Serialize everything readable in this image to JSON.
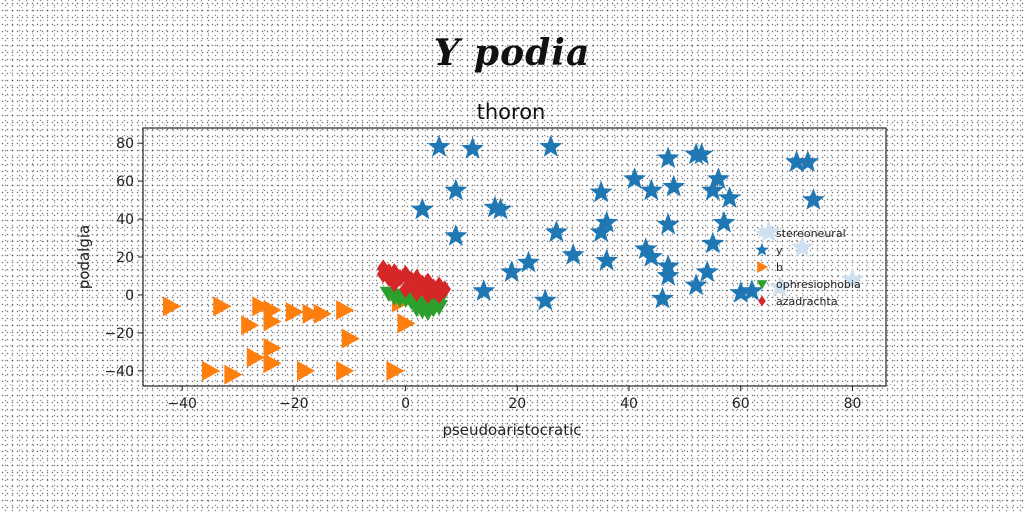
{
  "figure": {
    "suptitle": "Y podia"
  },
  "chart_data": {
    "type": "scatter",
    "title": "thoron",
    "xlabel": "pseudoaristocratic",
    "ylabel": "podalgia",
    "xlim": [
      -47,
      86
    ],
    "ylim": [
      -48,
      88
    ],
    "xticks": [
      -40,
      -20,
      0,
      20,
      40,
      60,
      80
    ],
    "yticks": [
      -40,
      -20,
      0,
      20,
      40,
      60,
      80
    ],
    "grid": false,
    "legend_position": "right",
    "series": [
      {
        "name": "stereoneural",
        "marker": "star",
        "color": "#cfe0f0",
        "points": [
          [
            65,
            33
          ],
          [
            71,
            25
          ],
          [
            67,
            4
          ],
          [
            80,
            8
          ]
        ]
      },
      {
        "name": "y",
        "marker": "star",
        "color": "#1f77b4",
        "points": [
          [
            6,
            78
          ],
          [
            12,
            77
          ],
          [
            26,
            78
          ],
          [
            52,
            74
          ],
          [
            53,
            74
          ],
          [
            47,
            72
          ],
          [
            41,
            61
          ],
          [
            44,
            55
          ],
          [
            48,
            57
          ],
          [
            55,
            55
          ],
          [
            56,
            61
          ],
          [
            58,
            51
          ],
          [
            70,
            70
          ],
          [
            72,
            70
          ],
          [
            73,
            50
          ],
          [
            3,
            45
          ],
          [
            9,
            55
          ],
          [
            16,
            46
          ],
          [
            17,
            45
          ],
          [
            35,
            54
          ],
          [
            36,
            38
          ],
          [
            35,
            33
          ],
          [
            47,
            37
          ],
          [
            57,
            38
          ],
          [
            9,
            31
          ],
          [
            27,
            33
          ],
          [
            43,
            24
          ],
          [
            44,
            20
          ],
          [
            55,
            27
          ],
          [
            22,
            17
          ],
          [
            30,
            21
          ],
          [
            36,
            18
          ],
          [
            47,
            15
          ],
          [
            47,
            10
          ],
          [
            19,
            12
          ],
          [
            54,
            12
          ],
          [
            14,
            2
          ],
          [
            25,
            -3
          ],
          [
            46,
            -2
          ],
          [
            52,
            5
          ],
          [
            60,
            1
          ],
          [
            62,
            2
          ]
        ]
      },
      {
        "name": "b",
        "marker": "triangle-right",
        "color": "#ff7f0e",
        "points": [
          [
            -42,
            -6
          ],
          [
            -33,
            -6
          ],
          [
            -26,
            -6
          ],
          [
            -24,
            -8
          ],
          [
            -20,
            -9
          ],
          [
            -15,
            -10
          ],
          [
            -11,
            -8
          ],
          [
            -28,
            -16
          ],
          [
            -24,
            -14
          ],
          [
            -17,
            -10
          ],
          [
            -10,
            -23
          ],
          [
            0,
            -15
          ],
          [
            -24,
            -28
          ],
          [
            -27,
            -33
          ],
          [
            -24,
            -36
          ],
          [
            -18,
            -40
          ],
          [
            -11,
            -40
          ],
          [
            -35,
            -40
          ],
          [
            -31,
            -42
          ],
          [
            -2,
            -40
          ],
          [
            -1,
            -4
          ]
        ]
      },
      {
        "name": "ophresiophobia",
        "marker": "triangle-down",
        "color": "#2ca02c",
        "points": [
          [
            -3,
            1
          ],
          [
            -1,
            0
          ],
          [
            1,
            -1
          ],
          [
            2,
            -3
          ],
          [
            3,
            -5
          ],
          [
            4,
            -4
          ],
          [
            5,
            -7
          ],
          [
            6,
            -6
          ],
          [
            -2,
            -1
          ],
          [
            0,
            -2
          ],
          [
            2,
            -5
          ],
          [
            3,
            -8
          ],
          [
            4,
            -9
          ],
          [
            6,
            -3
          ],
          [
            1,
            -3
          ],
          [
            -1,
            -2
          ],
          [
            3,
            -2
          ],
          [
            5,
            -2
          ],
          [
            4,
            -6
          ],
          [
            2,
            -7
          ]
        ]
      },
      {
        "name": "azadrachta",
        "marker": "diamond",
        "color": "#d62728",
        "points": [
          [
            -4,
            14
          ],
          [
            -2,
            12
          ],
          [
            0,
            11
          ],
          [
            2,
            9
          ],
          [
            4,
            7
          ],
          [
            6,
            5
          ],
          [
            7,
            3
          ],
          [
            6,
            0
          ],
          [
            4,
            0
          ],
          [
            2,
            1
          ],
          [
            0,
            3
          ],
          [
            -2,
            6
          ],
          [
            -3,
            9
          ],
          [
            -4,
            11
          ],
          [
            -1,
            9
          ],
          [
            1,
            6
          ],
          [
            3,
            4
          ],
          [
            5,
            2
          ],
          [
            -3,
            12
          ],
          [
            1,
            8
          ],
          [
            3,
            6
          ],
          [
            5,
            4
          ],
          [
            0,
            10
          ],
          [
            2,
            7
          ]
        ]
      }
    ]
  }
}
